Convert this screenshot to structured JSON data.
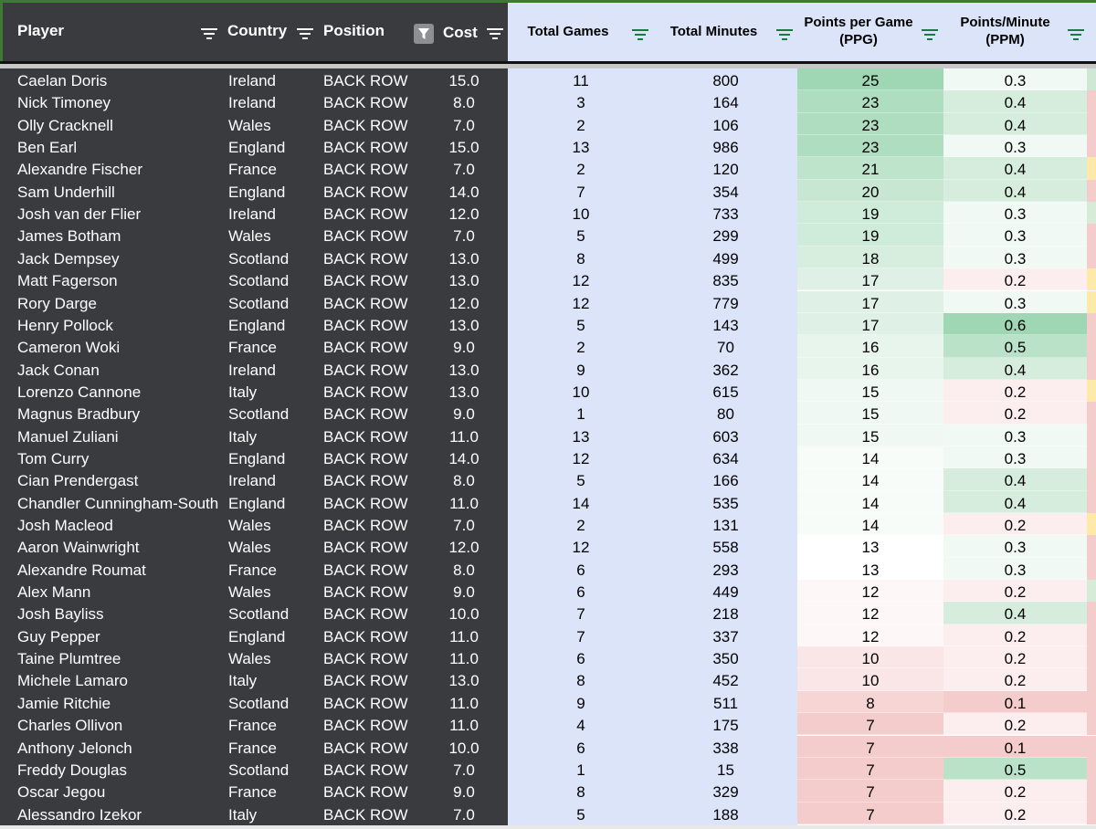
{
  "headers": {
    "player": "Player",
    "country": "Country",
    "position": "Position",
    "cost": "Cost",
    "total_games": "Total Games",
    "total_minutes": "Total Minutes",
    "ppg_line1": "Points per Game",
    "ppg_line2": "(PPG)",
    "ppm_line1": "Points/Minute",
    "ppm_line2": "(PPM)"
  },
  "icons": {
    "filter": "filter-lines-icon",
    "active_filter": "funnel-icon"
  },
  "colors": {
    "dark_column_bg": "#3a3b3f",
    "light_column_bg": "#dbe4f9",
    "filter_icon_green": "#177c3f",
    "high_value": "#9fd6b3",
    "low_value": "#f5cccc"
  },
  "rows": [
    {
      "player": "Caelan Doris",
      "country": "Ireland",
      "position": "BACK ROW",
      "cost": "15.0",
      "games": "11",
      "minutes": "800",
      "ppg": "25",
      "ppm": "0.3",
      "extra": "#cfe8d6"
    },
    {
      "player": "Nick Timoney",
      "country": "Ireland",
      "position": "BACK ROW",
      "cost": "8.0",
      "games": "3",
      "minutes": "164",
      "ppg": "23",
      "ppm": "0.4",
      "extra": "#f4cccc"
    },
    {
      "player": "Olly Cracknell",
      "country": "Wales",
      "position": "BACK ROW",
      "cost": "7.0",
      "games": "2",
      "minutes": "106",
      "ppg": "23",
      "ppm": "0.4",
      "extra": "#f4cccc"
    },
    {
      "player": "Ben Earl",
      "country": "England",
      "position": "BACK ROW",
      "cost": "15.0",
      "games": "13",
      "minutes": "986",
      "ppg": "23",
      "ppm": "0.3",
      "extra": "#f4cccc"
    },
    {
      "player": "Alexandre Fischer",
      "country": "France",
      "position": "BACK ROW",
      "cost": "7.0",
      "games": "2",
      "minutes": "120",
      "ppg": "21",
      "ppm": "0.4",
      "extra": "#fde9a8"
    },
    {
      "player": "Sam Underhill",
      "country": "England",
      "position": "BACK ROW",
      "cost": "14.0",
      "games": "7",
      "minutes": "354",
      "ppg": "20",
      "ppm": "0.4",
      "extra": "#f4cccc"
    },
    {
      "player": "Josh van der Flier",
      "country": "Ireland",
      "position": "BACK ROW",
      "cost": "12.0",
      "games": "10",
      "minutes": "733",
      "ppg": "19",
      "ppm": "0.3",
      "extra": "#d6ecd9"
    },
    {
      "player": "James Botham",
      "country": "Wales",
      "position": "BACK ROW",
      "cost": "7.0",
      "games": "5",
      "minutes": "299",
      "ppg": "19",
      "ppm": "0.3",
      "extra": "#f4cccc"
    },
    {
      "player": "Jack Dempsey",
      "country": "Scotland",
      "position": "BACK ROW",
      "cost": "13.0",
      "games": "8",
      "minutes": "499",
      "ppg": "18",
      "ppm": "0.3",
      "extra": "#f4cccc"
    },
    {
      "player": "Matt Fagerson",
      "country": "Scotland",
      "position": "BACK ROW",
      "cost": "13.0",
      "games": "12",
      "minutes": "835",
      "ppg": "17",
      "ppm": "0.2",
      "extra": "#fde9a8"
    },
    {
      "player": "Rory Darge",
      "country": "Scotland",
      "position": "BACK ROW",
      "cost": "12.0",
      "games": "12",
      "minutes": "779",
      "ppg": "17",
      "ppm": "0.3",
      "extra": "#fde9a8"
    },
    {
      "player": "Henry Pollock",
      "country": "England",
      "position": "BACK ROW",
      "cost": "13.0",
      "games": "5",
      "minutes": "143",
      "ppg": "17",
      "ppm": "0.6",
      "extra": "#f4cccc"
    },
    {
      "player": "Cameron Woki",
      "country": "France",
      "position": "BACK ROW",
      "cost": "9.0",
      "games": "2",
      "minutes": "70",
      "ppg": "16",
      "ppm": "0.5",
      "extra": "#f4cccc"
    },
    {
      "player": "Jack Conan",
      "country": "Ireland",
      "position": "BACK ROW",
      "cost": "13.0",
      "games": "9",
      "minutes": "362",
      "ppg": "16",
      "ppm": "0.4",
      "extra": "#f4cccc"
    },
    {
      "player": "Lorenzo Cannone",
      "country": "Italy",
      "position": "BACK ROW",
      "cost": "13.0",
      "games": "10",
      "minutes": "615",
      "ppg": "15",
      "ppm": "0.2",
      "extra": "#fde9a8"
    },
    {
      "player": "Magnus Bradbury",
      "country": "Scotland",
      "position": "BACK ROW",
      "cost": "9.0",
      "games": "1",
      "minutes": "80",
      "ppg": "15",
      "ppm": "0.2",
      "extra": "#f4cccc"
    },
    {
      "player": "Manuel Zuliani",
      "country": "Italy",
      "position": "BACK ROW",
      "cost": "11.0",
      "games": "13",
      "minutes": "603",
      "ppg": "15",
      "ppm": "0.3",
      "extra": "#f4cccc"
    },
    {
      "player": "Tom Curry",
      "country": "England",
      "position": "BACK ROW",
      "cost": "14.0",
      "games": "12",
      "minutes": "634",
      "ppg": "14",
      "ppm": "0.3",
      "extra": "#f4cccc"
    },
    {
      "player": "Cian Prendergast",
      "country": "Ireland",
      "position": "BACK ROW",
      "cost": "8.0",
      "games": "5",
      "minutes": "166",
      "ppg": "14",
      "ppm": "0.4",
      "extra": "#f4cccc"
    },
    {
      "player": "Chandler Cunningham-South",
      "country": "England",
      "position": "BACK ROW",
      "cost": "11.0",
      "games": "14",
      "minutes": "535",
      "ppg": "14",
      "ppm": "0.4",
      "extra": "#f4cccc"
    },
    {
      "player": "Josh Macleod",
      "country": "Wales",
      "position": "BACK ROW",
      "cost": "7.0",
      "games": "2",
      "minutes": "131",
      "ppg": "14",
      "ppm": "0.2",
      "extra": "#fde9a8"
    },
    {
      "player": "Aaron Wainwright",
      "country": "Wales",
      "position": "BACK ROW",
      "cost": "12.0",
      "games": "12",
      "minutes": "558",
      "ppg": "13",
      "ppm": "0.3",
      "extra": "#f4cccc"
    },
    {
      "player": "Alexandre Roumat",
      "country": "France",
      "position": "BACK ROW",
      "cost": "8.0",
      "games": "6",
      "minutes": "293",
      "ppg": "13",
      "ppm": "0.3",
      "extra": "#f4cccc"
    },
    {
      "player": "Alex Mann",
      "country": "Wales",
      "position": "BACK ROW",
      "cost": "9.0",
      "games": "6",
      "minutes": "449",
      "ppg": "12",
      "ppm": "0.2",
      "extra": "#d6ecd9"
    },
    {
      "player": "Josh Bayliss",
      "country": "Scotland",
      "position": "BACK ROW",
      "cost": "10.0",
      "games": "7",
      "minutes": "218",
      "ppg": "12",
      "ppm": "0.4",
      "extra": "#f4cccc"
    },
    {
      "player": "Guy Pepper",
      "country": "England",
      "position": "BACK ROW",
      "cost": "11.0",
      "games": "7",
      "minutes": "337",
      "ppg": "12",
      "ppm": "0.2",
      "extra": "#f4cccc"
    },
    {
      "player": "Taine Plumtree",
      "country": "Wales",
      "position": "BACK ROW",
      "cost": "11.0",
      "games": "6",
      "minutes": "350",
      "ppg": "10",
      "ppm": "0.2",
      "extra": "#f4cccc"
    },
    {
      "player": "Michele Lamaro",
      "country": "Italy",
      "position": "BACK ROW",
      "cost": "13.0",
      "games": "8",
      "minutes": "452",
      "ppg": "10",
      "ppm": "0.2",
      "extra": "#f4cccc"
    },
    {
      "player": "Jamie Ritchie",
      "country": "Scotland",
      "position": "BACK ROW",
      "cost": "11.0",
      "games": "9",
      "minutes": "511",
      "ppg": "8",
      "ppm": "0.1",
      "extra": "#f4cccc"
    },
    {
      "player": "Charles Ollivon",
      "country": "France",
      "position": "BACK ROW",
      "cost": "11.0",
      "games": "4",
      "minutes": "175",
      "ppg": "7",
      "ppm": "0.2",
      "extra": "#f4cccc"
    },
    {
      "player": "Anthony Jelonch",
      "country": "France",
      "position": "BACK ROW",
      "cost": "10.0",
      "games": "6",
      "minutes": "338",
      "ppg": "7",
      "ppm": "0.1",
      "extra": "#f4cccc"
    },
    {
      "player": "Freddy Douglas",
      "country": "Scotland",
      "position": "BACK ROW",
      "cost": "7.0",
      "games": "1",
      "minutes": "15",
      "ppg": "7",
      "ppm": "0.5",
      "extra": "#f4cccc"
    },
    {
      "player": "Oscar Jegou",
      "country": "France",
      "position": "BACK ROW",
      "cost": "9.0",
      "games": "8",
      "minutes": "329",
      "ppg": "7",
      "ppm": "0.2",
      "extra": "#f4cccc"
    },
    {
      "player": "Alessandro Izekor",
      "country": "Italy",
      "position": "BACK ROW",
      "cost": "7.0",
      "games": "5",
      "minutes": "188",
      "ppg": "7",
      "ppm": "0.2",
      "extra": "#f4cccc"
    }
  ]
}
